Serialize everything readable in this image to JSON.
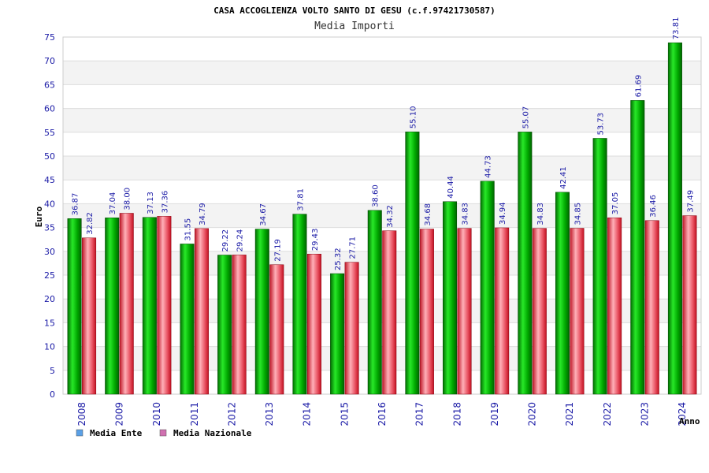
{
  "chart_data": {
    "type": "bar",
    "title": "CASA ACCOGLIENZA VOLTO SANTO DI GESU (c.f.97421730587)",
    "subtitle": "Media Importi",
    "xlabel": "Anno",
    "ylabel": "Euro",
    "ylim": [
      0,
      75
    ],
    "yticks": [
      0,
      5,
      10,
      15,
      20,
      25,
      30,
      35,
      40,
      45,
      50,
      55,
      60,
      65,
      70,
      75
    ],
    "grid": true,
    "legend_position": "bottom-left",
    "categories": [
      "2008",
      "2009",
      "2010",
      "2011",
      "2012",
      "2013",
      "2014",
      "2015",
      "2016",
      "2017",
      "2018",
      "2019",
      "2020",
      "2021",
      "2022",
      "2023",
      "2024"
    ],
    "series": [
      {
        "name": "Media Ente",
        "color": "#00b000",
        "legend_color": "#5aa0e6",
        "values": [
          36.87,
          37.04,
          37.13,
          31.55,
          29.22,
          34.67,
          37.81,
          25.32,
          38.6,
          55.1,
          40.44,
          44.73,
          55.07,
          42.41,
          53.73,
          61.69,
          73.81
        ],
        "labels": [
          "36.87",
          "37.04",
          "37.13",
          "31.55",
          "29.22",
          "34.67",
          "37.81",
          "25.32",
          "38.60",
          "55.10",
          "40.44",
          "44.73",
          "55.07",
          "42.41",
          "53.73",
          "61.69",
          "73.81"
        ]
      },
      {
        "name": "Media Nazionale",
        "color": "#e0303c",
        "legend_color": "#d070b0",
        "values": [
          32.82,
          38.0,
          37.36,
          34.79,
          29.24,
          27.19,
          29.43,
          27.71,
          34.32,
          34.68,
          34.83,
          34.94,
          34.83,
          34.85,
          37.05,
          36.46,
          37.49
        ],
        "labels": [
          "32.82",
          "38.00",
          "37.36",
          "34.79",
          "29.24",
          "27.19",
          "29.43",
          "27.71",
          "34.32",
          "34.68",
          "34.83",
          "34.94",
          "34.83",
          "34.85",
          "37.05",
          "36.46",
          "37.49"
        ]
      }
    ]
  }
}
